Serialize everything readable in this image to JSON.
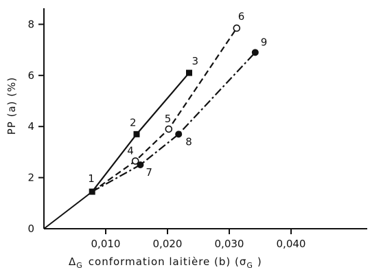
{
  "chart_data": {
    "type": "line",
    "xlabel": "conformation laitière (b) (σ",
    "xlabel_delta": "Δ",
    "xlabel_delta_sub": "G",
    "xlabel_unit_sub": "G",
    "xlabel_close": ")",
    "ylabel": "PP (a) (%)",
    "xlim": [
      0,
      0.043
    ],
    "ylim": [
      0,
      8.8
    ],
    "grid": false,
    "x_ticks": [
      {
        "value": 0.01,
        "label": "0,010"
      },
      {
        "value": 0.02,
        "label": "0,020"
      },
      {
        "value": 0.03,
        "label": "0,030"
      },
      {
        "value": 0.04,
        "label": "0,040"
      }
    ],
    "y_ticks": [
      {
        "value": 0,
        "label": "0"
      },
      {
        "value": 2,
        "label": "2"
      },
      {
        "value": 4,
        "label": "4"
      },
      {
        "value": 6,
        "label": "6"
      },
      {
        "value": 8,
        "label": "8"
      }
    ],
    "origin_segment": [
      [
        0,
        0
      ],
      [
        0.0078,
        1.45
      ]
    ],
    "series": [
      {
        "style": "solid",
        "marker": "square-filled",
        "points": [
          {
            "x": 0.0078,
            "y": 1.45,
            "label": "1"
          },
          {
            "x": 0.015,
            "y": 3.7,
            "label": "2"
          },
          {
            "x": 0.0235,
            "y": 6.1,
            "label": "3"
          }
        ]
      },
      {
        "style": "dashed",
        "marker": "circle-open",
        "points": [
          {
            "x": 0.0078,
            "y": 1.45,
            "label": "1"
          },
          {
            "x": 0.0148,
            "y": 2.65,
            "label": "4"
          },
          {
            "x": 0.0202,
            "y": 3.9,
            "label": "5"
          },
          {
            "x": 0.0312,
            "y": 7.85,
            "label": "6"
          }
        ]
      },
      {
        "style": "dash-dot",
        "marker": "circle-filled",
        "points": [
          {
            "x": 0.0078,
            "y": 1.45,
            "label": "1"
          },
          {
            "x": 0.0156,
            "y": 2.5,
            "label": "7"
          },
          {
            "x": 0.0218,
            "y": 3.7,
            "label": "8"
          },
          {
            "x": 0.0342,
            "y": 6.9,
            "label": "9"
          }
        ]
      }
    ]
  }
}
